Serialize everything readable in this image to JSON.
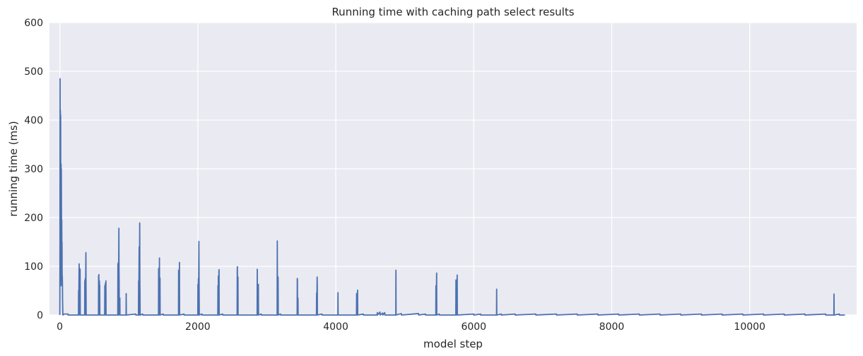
{
  "chart_data": {
    "type": "line",
    "title": "Running time with caching path select results",
    "xlabel": "model step",
    "ylabel": "running time (ms)",
    "xlim": [
      -150,
      11550
    ],
    "ylim": [
      0,
      600
    ],
    "xticks": [
      0,
      2000,
      4000,
      6000,
      8000,
      10000
    ],
    "yticks": [
      0,
      100,
      200,
      300,
      400,
      500,
      600
    ],
    "grid": true,
    "colors": {
      "background": "#eaeaf2",
      "grid": "#ffffff",
      "line": "#4c72b0"
    },
    "series": [
      {
        "values": [
          [
            0,
            0
          ],
          [
            2,
            140
          ],
          [
            4,
            485
          ],
          [
            6,
            80
          ],
          [
            8,
            420
          ],
          [
            10,
            150
          ],
          [
            12,
            410
          ],
          [
            14,
            60
          ],
          [
            16,
            230
          ],
          [
            18,
            310
          ],
          [
            20,
            120
          ],
          [
            22,
            300
          ],
          [
            24,
            200
          ],
          [
            26,
            70
          ],
          [
            28,
            195
          ],
          [
            30,
            100
          ],
          [
            32,
            150
          ],
          [
            34,
            60
          ],
          [
            36,
            80
          ],
          [
            38,
            65
          ],
          [
            40,
            30
          ],
          [
            44,
            0
          ],
          [
            60,
            2
          ],
          [
            120,
            2
          ],
          [
            121,
            0
          ],
          [
            270,
            0
          ],
          [
            272,
            50
          ],
          [
            274,
            0
          ],
          [
            278,
            80
          ],
          [
            280,
            105
          ],
          [
            282,
            0
          ],
          [
            290,
            95
          ],
          [
            292,
            30
          ],
          [
            294,
            93
          ],
          [
            296,
            0
          ],
          [
            360,
            0
          ],
          [
            362,
            70
          ],
          [
            364,
            0
          ],
          [
            368,
            75
          ],
          [
            370,
            0
          ],
          [
            378,
            128
          ],
          [
            380,
            57
          ],
          [
            382,
            0
          ],
          [
            560,
            0
          ],
          [
            562,
            80
          ],
          [
            564,
            40
          ],
          [
            566,
            83
          ],
          [
            568,
            0
          ],
          [
            574,
            70
          ],
          [
            576,
            30
          ],
          [
            578,
            62
          ],
          [
            580,
            0
          ],
          [
            650,
            0
          ],
          [
            652,
            60
          ],
          [
            654,
            0
          ],
          [
            660,
            65
          ],
          [
            662,
            0
          ],
          [
            668,
            70
          ],
          [
            670,
            0
          ],
          [
            840,
            0
          ],
          [
            842,
            105
          ],
          [
            844,
            0
          ],
          [
            848,
            108
          ],
          [
            850,
            0
          ],
          [
            856,
            178
          ],
          [
            858,
            90
          ],
          [
            860,
            70
          ],
          [
            862,
            0
          ],
          [
            870,
            35
          ],
          [
            872,
            0
          ],
          [
            960,
            0
          ],
          [
            962,
            44
          ],
          [
            964,
            0
          ],
          [
            1100,
            2
          ],
          [
            1101,
            0
          ],
          [
            1140,
            0
          ],
          [
            1142,
            70
          ],
          [
            1144,
            0
          ],
          [
            1150,
            140
          ],
          [
            1152,
            0
          ],
          [
            1158,
            189
          ],
          [
            1160,
            75
          ],
          [
            1162,
            48
          ],
          [
            1164,
            0
          ],
          [
            1200,
            2
          ],
          [
            1201,
            0
          ],
          [
            1430,
            0
          ],
          [
            1432,
            95
          ],
          [
            1434,
            0
          ],
          [
            1440,
            97
          ],
          [
            1442,
            50
          ],
          [
            1444,
            117
          ],
          [
            1446,
            0
          ],
          [
            1452,
            76
          ],
          [
            1454,
            0
          ],
          [
            1500,
            2
          ],
          [
            1501,
            0
          ],
          [
            1720,
            0
          ],
          [
            1722,
            92
          ],
          [
            1724,
            0
          ],
          [
            1730,
            93
          ],
          [
            1732,
            60
          ],
          [
            1734,
            108
          ],
          [
            1736,
            0
          ],
          [
            1800,
            2
          ],
          [
            1801,
            0
          ],
          [
            2000,
            0
          ],
          [
            2002,
            63
          ],
          [
            2004,
            0
          ],
          [
            2008,
            75
          ],
          [
            2010,
            0
          ],
          [
            2016,
            151
          ],
          [
            2018,
            90
          ],
          [
            2020,
            35
          ],
          [
            2022,
            0
          ],
          [
            2060,
            2
          ],
          [
            2061,
            0
          ],
          [
            2290,
            0
          ],
          [
            2292,
            60
          ],
          [
            2294,
            0
          ],
          [
            2298,
            80
          ],
          [
            2300,
            0
          ],
          [
            2306,
            90
          ],
          [
            2308,
            93
          ],
          [
            2310,
            0
          ],
          [
            2360,
            2
          ],
          [
            2361,
            0
          ],
          [
            2570,
            0
          ],
          [
            2572,
            95
          ],
          [
            2574,
            99
          ],
          [
            2576,
            0
          ],
          [
            2582,
            78
          ],
          [
            2584,
            0
          ],
          [
            2860,
            0
          ],
          [
            2862,
            94
          ],
          [
            2864,
            0
          ],
          [
            2868,
            62
          ],
          [
            2870,
            0
          ],
          [
            2878,
            63
          ],
          [
            2880,
            0
          ],
          [
            2920,
            2
          ],
          [
            2921,
            0
          ],
          [
            3150,
            0
          ],
          [
            3152,
            152
          ],
          [
            3154,
            78
          ],
          [
            3156,
            0
          ],
          [
            3164,
            78
          ],
          [
            3166,
            0
          ],
          [
            3200,
            2
          ],
          [
            3201,
            0
          ],
          [
            3440,
            0
          ],
          [
            3442,
            75
          ],
          [
            3444,
            73
          ],
          [
            3446,
            0
          ],
          [
            3452,
            35
          ],
          [
            3454,
            0
          ],
          [
            3720,
            0
          ],
          [
            3722,
            45
          ],
          [
            3724,
            0
          ],
          [
            3730,
            78
          ],
          [
            3732,
            60
          ],
          [
            3734,
            0
          ],
          [
            3800,
            2
          ],
          [
            3801,
            0
          ],
          [
            4030,
            0
          ],
          [
            4032,
            46
          ],
          [
            4034,
            0
          ],
          [
            4300,
            0
          ],
          [
            4302,
            44
          ],
          [
            4304,
            0
          ],
          [
            4310,
            45
          ],
          [
            4312,
            0
          ],
          [
            4316,
            51
          ],
          [
            4318,
            0
          ],
          [
            4400,
            2
          ],
          [
            4401,
            0
          ],
          [
            4600,
            0
          ],
          [
            4602,
            5
          ],
          [
            4604,
            0
          ],
          [
            4640,
            6
          ],
          [
            4642,
            0
          ],
          [
            4680,
            4
          ],
          [
            4682,
            0
          ],
          [
            4710,
            5
          ],
          [
            4712,
            0
          ],
          [
            4870,
            0
          ],
          [
            4872,
            92
          ],
          [
            4874,
            0
          ],
          [
            4950,
            3
          ],
          [
            4952,
            0
          ],
          [
            5200,
            3
          ],
          [
            5202,
            0
          ],
          [
            5300,
            2
          ],
          [
            5301,
            0
          ],
          [
            5450,
            0
          ],
          [
            5452,
            60
          ],
          [
            5454,
            0
          ],
          [
            5462,
            86
          ],
          [
            5464,
            0
          ],
          [
            5500,
            2
          ],
          [
            5501,
            0
          ],
          [
            5740,
            0
          ],
          [
            5742,
            72
          ],
          [
            5744,
            0
          ],
          [
            5750,
            71
          ],
          [
            5752,
            0
          ],
          [
            5760,
            82
          ],
          [
            5762,
            0
          ],
          [
            6000,
            2
          ],
          [
            6001,
            0
          ],
          [
            6100,
            2
          ],
          [
            6101,
            0
          ],
          [
            6330,
            0
          ],
          [
            6332,
            53
          ],
          [
            6334,
            0
          ],
          [
            6400,
            2
          ],
          [
            6401,
            0
          ],
          [
            6600,
            2
          ],
          [
            6601,
            0
          ],
          [
            6900,
            2
          ],
          [
            6901,
            0
          ],
          [
            7200,
            2
          ],
          [
            7201,
            0
          ],
          [
            7500,
            2
          ],
          [
            7501,
            0
          ],
          [
            7800,
            2
          ],
          [
            7801,
            0
          ],
          [
            8100,
            2
          ],
          [
            8101,
            0
          ],
          [
            8400,
            2
          ],
          [
            8401,
            0
          ],
          [
            8700,
            2
          ],
          [
            8701,
            0
          ],
          [
            9000,
            2
          ],
          [
            9001,
            0
          ],
          [
            9300,
            2
          ],
          [
            9301,
            0
          ],
          [
            9600,
            2
          ],
          [
            9601,
            0
          ],
          [
            9900,
            2
          ],
          [
            9901,
            0
          ],
          [
            10200,
            2
          ],
          [
            10201,
            0
          ],
          [
            10500,
            2
          ],
          [
            10501,
            0
          ],
          [
            10800,
            2
          ],
          [
            10801,
            0
          ],
          [
            11100,
            2
          ],
          [
            11101,
            0
          ],
          [
            11220,
            0
          ],
          [
            11222,
            43
          ],
          [
            11224,
            0
          ],
          [
            11300,
            2
          ],
          [
            11301,
            0
          ],
          [
            11380,
            0
          ]
        ]
      }
    ]
  }
}
